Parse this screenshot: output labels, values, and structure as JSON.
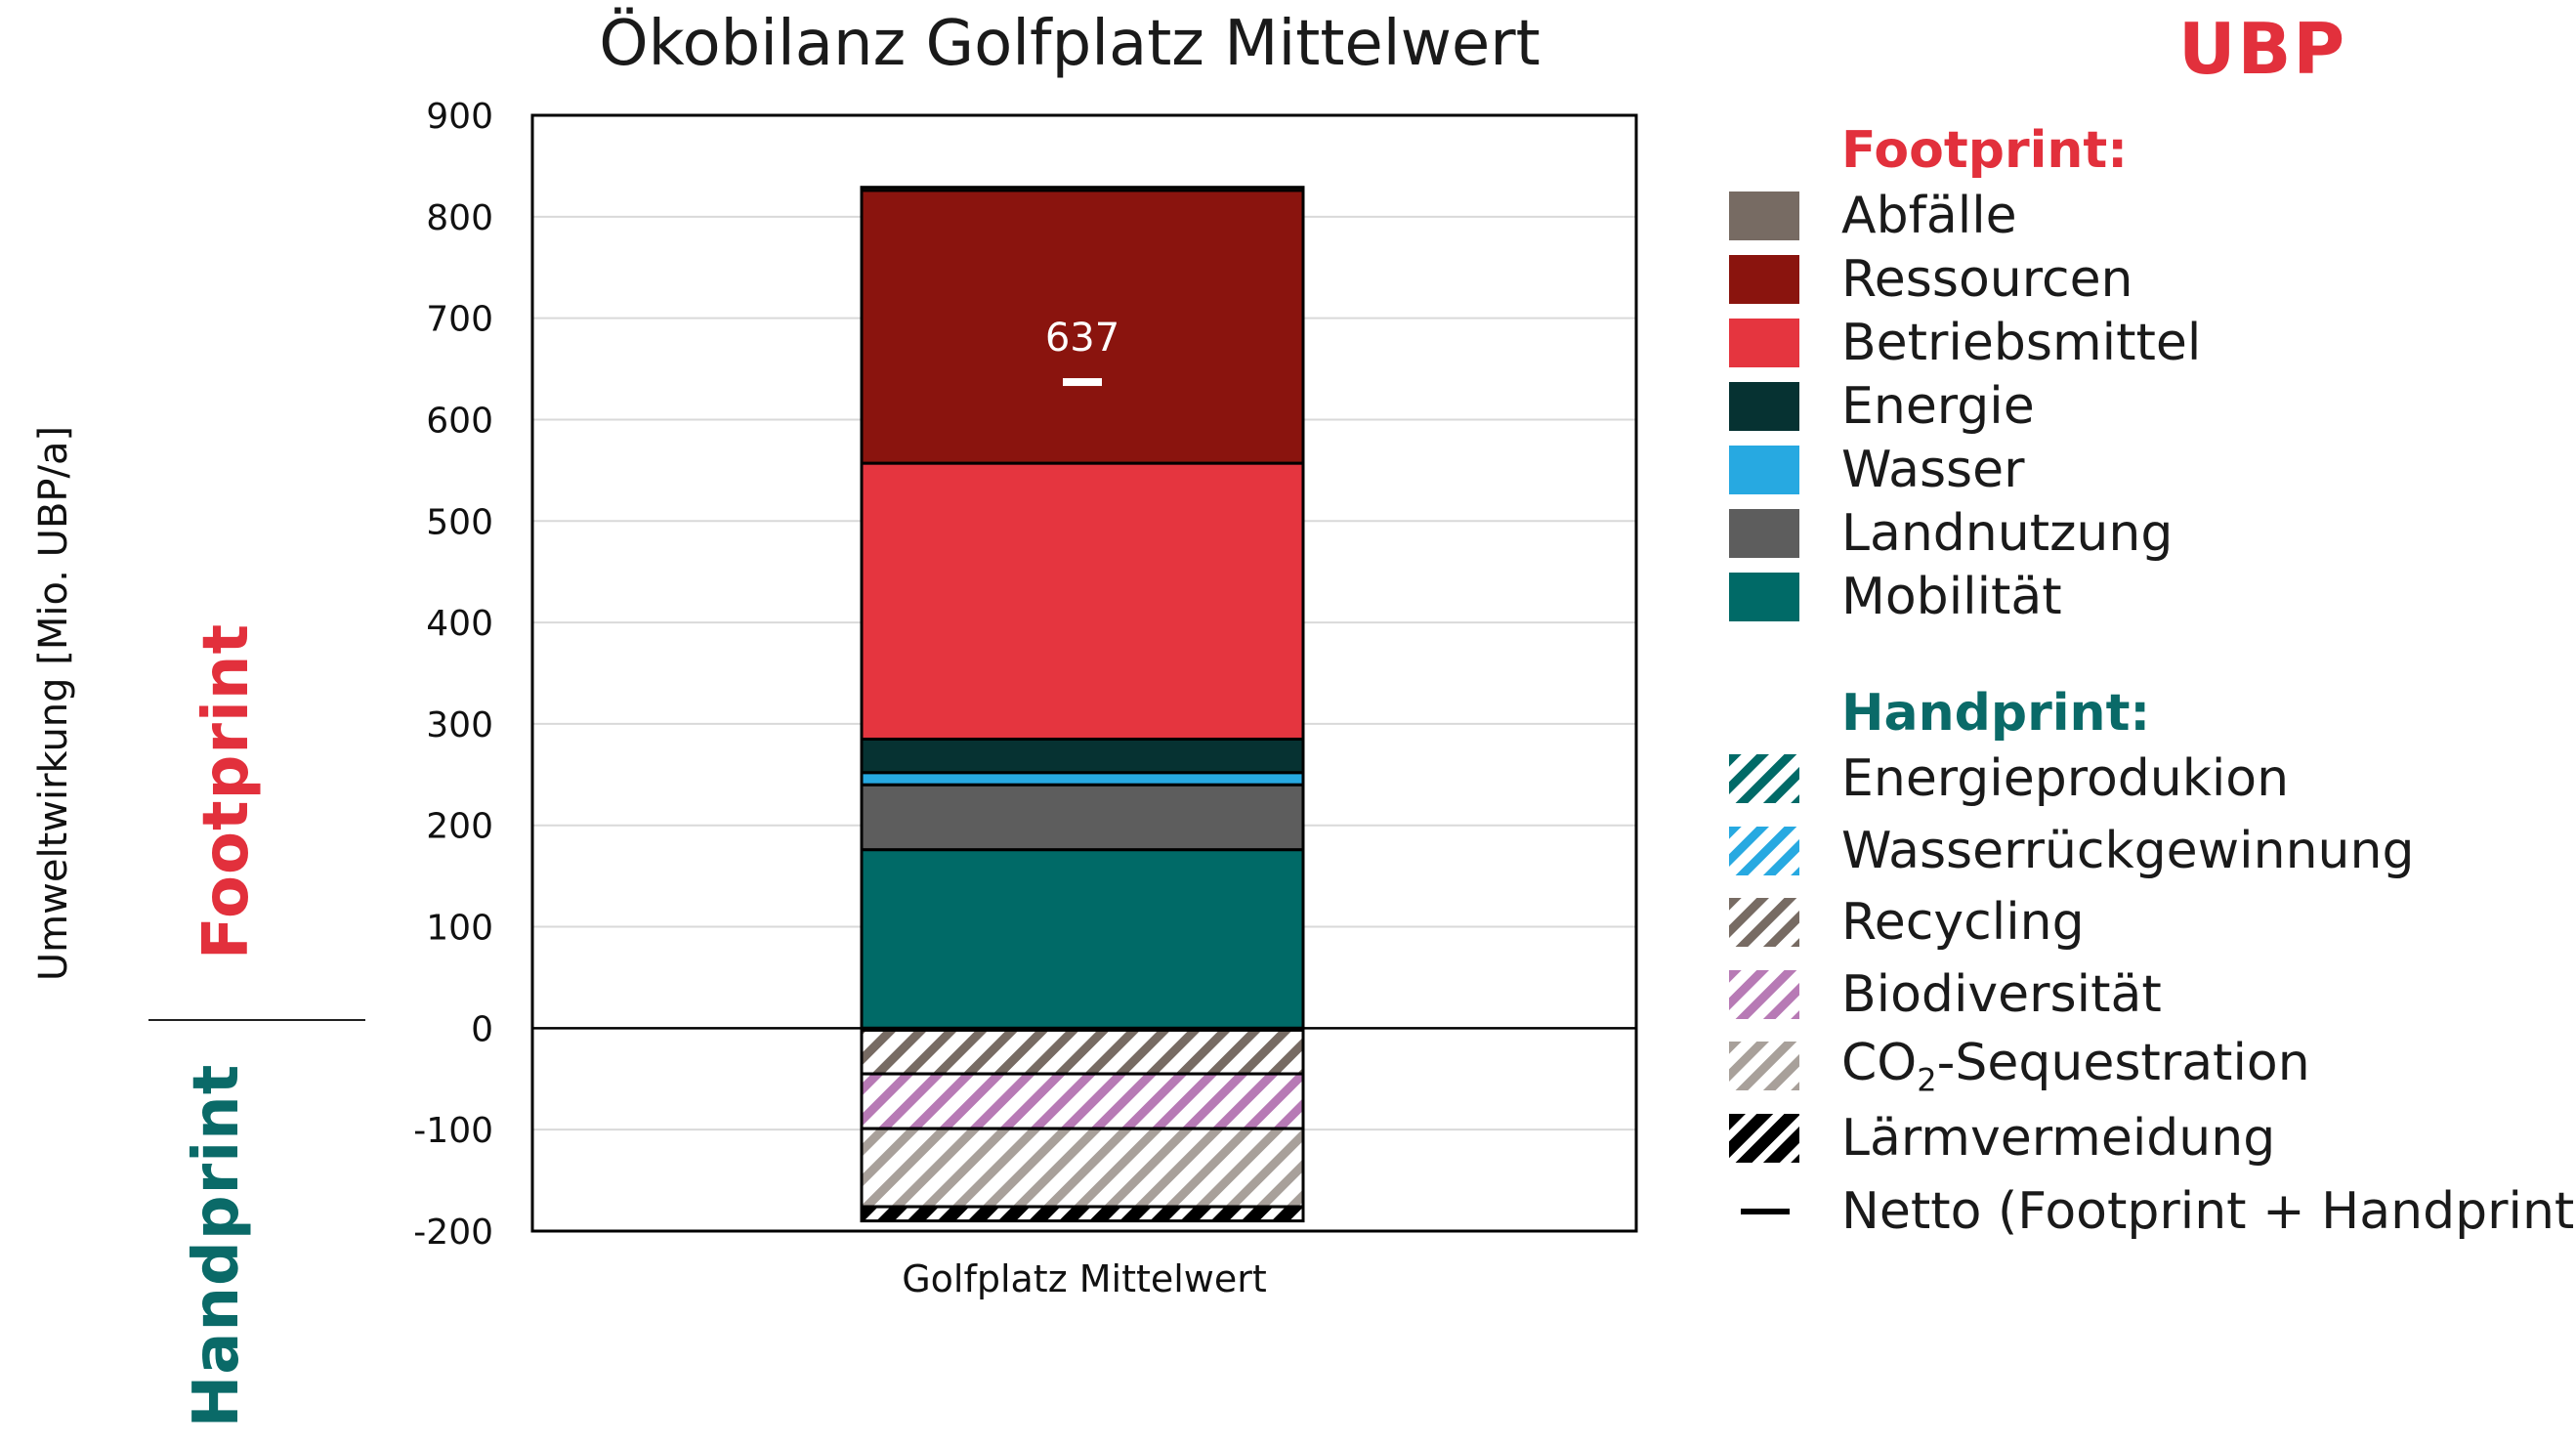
{
  "title": "Ökobilanz Golfplatz Mittelwert",
  "badge": "UBP",
  "colors": {
    "footprint": "#e2303c",
    "handprint": "#0a6a68"
  },
  "side_labels": {
    "footprint": "Footprint",
    "handprint": "Handprint"
  },
  "legend": {
    "footprint_heading": "Footprint:",
    "footprint_items": [
      {
        "label": "Abfälle",
        "color": "#776b63"
      },
      {
        "label": "Ressourcen",
        "color": "#8a140e"
      },
      {
        "label": "Betriebsmittel",
        "color": "#e5353f"
      },
      {
        "label": "Energie",
        "color": "#063232"
      },
      {
        "label": "Wasser",
        "color": "#27a9e1"
      },
      {
        "label": "Landnutzung",
        "color": "#5d5d5d"
      },
      {
        "label": "Mobilität",
        "color": "#006a67"
      }
    ],
    "handprint_heading": "Handprint:",
    "handprint_items": [
      {
        "label": "Energieprodukion",
        "color": "#006a67"
      },
      {
        "label": "Wasserrückgewinnung",
        "color": "#27a9e1"
      },
      {
        "label": "Recycling",
        "color": "#776b63"
      },
      {
        "label": "Biodiversität",
        "color": "#b77ab5"
      },
      {
        "label": "CO₂-Sequestration",
        "color": "#a8a09a"
      },
      {
        "label": "Lärmvermeidung",
        "color": "#000000"
      }
    ],
    "net_label": "Netto (Footprint + Handprint)"
  },
  "chart_data": {
    "type": "bar",
    "stacked": true,
    "title": "Ökobilanz Golfplatz Mittelwert",
    "categories": [
      "Golfplatz Mittelwert"
    ],
    "ylabel": "Umweltwirkung [Mio. UBP/a]",
    "ylim": [
      -200,
      900
    ],
    "yticks": [
      -200,
      -100,
      0,
      100,
      200,
      300,
      400,
      500,
      600,
      700,
      800,
      900
    ],
    "grid": true,
    "footprint_series": [
      {
        "name": "Mobilität",
        "values": [
          176
        ],
        "color": "#006a67"
      },
      {
        "name": "Landnutzung",
        "values": [
          64
        ],
        "color": "#5d5d5d"
      },
      {
        "name": "Wasser",
        "values": [
          12
        ],
        "color": "#27a9e1"
      },
      {
        "name": "Energie",
        "values": [
          33
        ],
        "color": "#063232"
      },
      {
        "name": "Betriebsmittel",
        "values": [
          272
        ],
        "color": "#e5353f"
      },
      {
        "name": "Ressourcen",
        "values": [
          269
        ],
        "color": "#8a140e"
      },
      {
        "name": "Abfälle",
        "values": [
          3
        ],
        "color": "#776b63"
      }
    ],
    "handprint_series": [
      {
        "name": "Energieprodukion",
        "values": [
          -1
        ],
        "color": "#006a67"
      },
      {
        "name": "Wasserrückgewinnung",
        "values": [
          -1
        ],
        "color": "#27a9e1"
      },
      {
        "name": "Recycling",
        "values": [
          -43
        ],
        "color": "#776b63"
      },
      {
        "name": "Biodiversität",
        "values": [
          -54
        ],
        "color": "#b77ab5"
      },
      {
        "name": "CO₂-Sequestration",
        "values": [
          -77
        ],
        "color": "#a8a09a"
      },
      {
        "name": "Lärmvermeidung",
        "values": [
          -14
        ],
        "color": "#000000"
      }
    ],
    "net": {
      "name": "Netto (Footprint + Handprint)",
      "value": 637
    },
    "net_label": "637"
  }
}
